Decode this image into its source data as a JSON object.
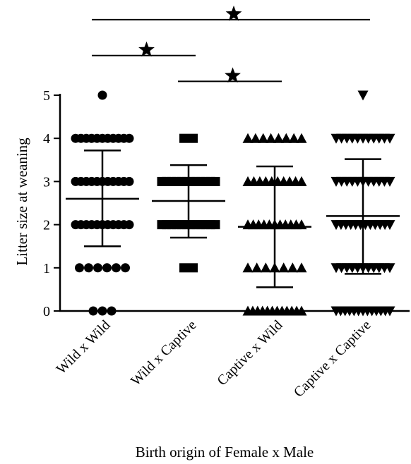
{
  "chart_data": {
    "type": "scatter",
    "ylabel": "Litter size at weaning",
    "xlabel": "Birth origin of Female x Male",
    "ylim": [
      0,
      5
    ],
    "yticks": [
      0,
      1,
      2,
      3,
      4,
      5
    ],
    "categories": [
      "Wild x Wild",
      "Wild x Captive",
      "Captive x Wild",
      "Captive x Captive"
    ],
    "grid": false,
    "groups": [
      {
        "category": "Wild x Wild",
        "marker": "circle",
        "mean": 2.6,
        "sd_low": 1.5,
        "sd_high": 3.72,
        "points": [
          {
            "y": 5,
            "count": 1
          },
          {
            "y": 4,
            "count": 11
          },
          {
            "y": 3,
            "count": 11
          },
          {
            "y": 2,
            "count": 11
          },
          {
            "y": 1,
            "count": 6
          },
          {
            "y": 0,
            "count": 3
          }
        ]
      },
      {
        "category": "Wild x Captive",
        "marker": "square",
        "mean": 2.55,
        "sd_low": 1.7,
        "sd_high": 3.38,
        "points": [
          {
            "y": 4,
            "count": 2
          },
          {
            "y": 3,
            "count": 12
          },
          {
            "y": 2,
            "count": 12
          },
          {
            "y": 1,
            "count": 2
          }
        ]
      },
      {
        "category": "Captive x Wild",
        "marker": "triangle-up",
        "mean": 1.95,
        "sd_low": 0.55,
        "sd_high": 3.35,
        "points": [
          {
            "y": 4,
            "count": 8
          },
          {
            "y": 3,
            "count": 10
          },
          {
            "y": 2,
            "count": 11
          },
          {
            "y": 1,
            "count": 7
          },
          {
            "y": 0,
            "count": 12
          }
        ]
      },
      {
        "category": "Captive x Captive",
        "marker": "triangle-down",
        "mean": 2.2,
        "sd_low": 0.86,
        "sd_high": 3.52,
        "points": [
          {
            "y": 5,
            "count": 1
          },
          {
            "y": 4,
            "count": 11
          },
          {
            "y": 3,
            "count": 11
          },
          {
            "y": 2,
            "count": 12
          },
          {
            "y": 1,
            "count": 11
          },
          {
            "y": 0,
            "count": 13
          }
        ]
      }
    ],
    "significance": [
      {
        "from": "Wild x Wild",
        "to": "Wild x Captive",
        "level": 5.92
      },
      {
        "from": "Wild x Captive",
        "to": "Captive x Wild",
        "level": 5.32
      },
      {
        "from": "Wild x Wild",
        "to": "Captive x Captive",
        "level": 6.75
      }
    ]
  }
}
